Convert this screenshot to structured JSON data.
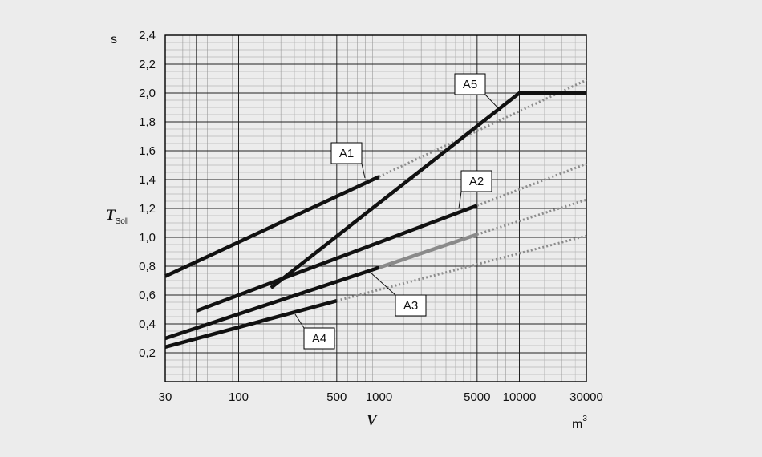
{
  "chart_data": {
    "type": "line",
    "xlabel": "V",
    "xunit": "m",
    "xunit_exp": "3",
    "ylabel": "T",
    "ylabel_sub": "Soll",
    "yunit": "s",
    "xscale": "log",
    "xlim": [
      30,
      30000
    ],
    "ylim": [
      0,
      2.4
    ],
    "grid": true,
    "x_ticks": [
      30,
      100,
      500,
      1000,
      5000,
      10000,
      30000
    ],
    "x_tick_labels": [
      "30",
      "100",
      "500",
      "1000",
      "5000",
      "10000",
      "30000"
    ],
    "y_ticks": [
      0.2,
      0.4,
      0.6,
      0.8,
      1.0,
      1.2,
      1.4,
      1.6,
      1.8,
      2.0,
      2.2,
      2.4
    ],
    "y_tick_labels": [
      "0,2",
      "0,4",
      "0,6",
      "0,8",
      "1,0",
      "1,2",
      "1,4",
      "1,6",
      "1,8",
      "2,0",
      "2,2",
      "2,4"
    ],
    "series": [
      {
        "name": "A1",
        "x": [
          30,
          1000
        ],
        "y": [
          0.73,
          1.42
        ],
        "extension": {
          "x": [
            1000,
            30000
          ],
          "y": [
            1.42,
            2.09
          ]
        }
      },
      {
        "name": "A2",
        "x": [
          50,
          5000
        ],
        "y": [
          0.49,
          1.22
        ],
        "extension": {
          "x": [
            5000,
            30000
          ],
          "y": [
            1.22,
            1.51
          ]
        }
      },
      {
        "name": "A3",
        "x": [
          30,
          1000
        ],
        "y": [
          0.3,
          0.79
        ],
        "highlight": {
          "x": [
            1000,
            5000
          ],
          "y": [
            0.79,
            1.02
          ]
        },
        "extension": {
          "x": [
            5000,
            30000
          ],
          "y": [
            1.02,
            1.26
          ]
        }
      },
      {
        "name": "A4",
        "x": [
          30,
          500
        ],
        "y": [
          0.24,
          0.56
        ],
        "extension": {
          "x": [
            500,
            30000
          ],
          "y": [
            0.56,
            1.01
          ]
        }
      },
      {
        "name": "A5",
        "x": [
          170,
          10000,
          30000
        ],
        "y": [
          0.65,
          2.0,
          2.0
        ]
      }
    ]
  }
}
